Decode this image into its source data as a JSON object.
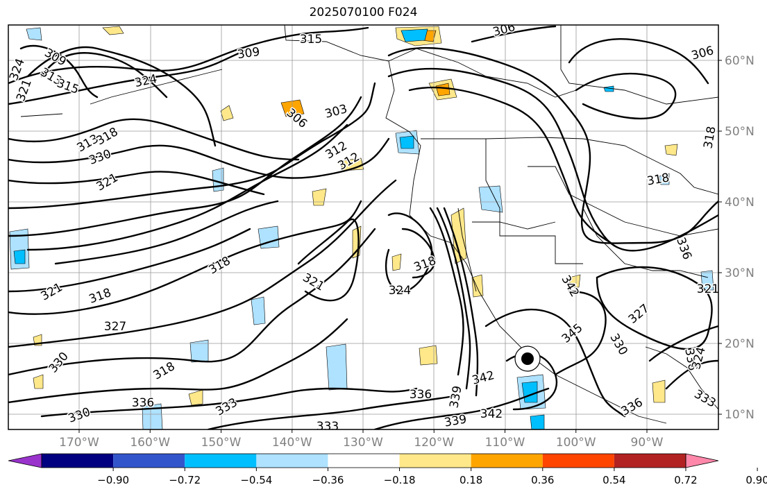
{
  "title": "2025070100 F024",
  "map": {
    "lat_labels": [
      "60°N",
      "50°N",
      "40°N",
      "30°N",
      "20°N",
      "10°N"
    ],
    "lon_labels": [
      "170°W",
      "160°W",
      "150°W",
      "140°W",
      "130°W",
      "120°W",
      "110°W",
      "100°W",
      "90°W"
    ],
    "contour_labels": [
      {
        "text": "315"
      },
      {
        "text": "309"
      },
      {
        "text": "309"
      },
      {
        "text": "306"
      },
      {
        "text": "306"
      },
      {
        "text": "324"
      },
      {
        "text": "321"
      },
      {
        "text": "313"
      },
      {
        "text": "315"
      },
      {
        "text": "324"
      },
      {
        "text": "306"
      },
      {
        "text": "303"
      },
      {
        "text": "313"
      },
      {
        "text": "318"
      },
      {
        "text": "330"
      },
      {
        "text": "321"
      },
      {
        "text": "312"
      },
      {
        "text": "312"
      },
      {
        "text": "318"
      },
      {
        "text": "318"
      },
      {
        "text": "321"
      },
      {
        "text": "324"
      },
      {
        "text": "321"
      },
      {
        "text": "318"
      },
      {
        "text": "327"
      },
      {
        "text": "330"
      },
      {
        "text": "318"
      },
      {
        "text": "336"
      },
      {
        "text": "330"
      },
      {
        "text": "333"
      },
      {
        "text": "333"
      },
      {
        "text": "336"
      },
      {
        "text": "339"
      },
      {
        "text": "339"
      },
      {
        "text": "342"
      },
      {
        "text": "342"
      },
      {
        "text": "345"
      },
      {
        "text": "342"
      },
      {
        "text": "327"
      },
      {
        "text": "330"
      },
      {
        "text": "336"
      },
      {
        "text": "336"
      },
      {
        "text": "318"
      },
      {
        "text": "318"
      },
      {
        "text": "336"
      },
      {
        "text": "324"
      },
      {
        "text": "333"
      },
      {
        "text": "321"
      }
    ]
  },
  "colorbar": {
    "ticks": [
      "−0.90",
      "−0.72",
      "−0.54",
      "−0.36",
      "−0.18",
      "0.18",
      "0.36",
      "0.54",
      "0.72",
      "0.90"
    ],
    "colors": [
      "#9933cc",
      "#000080",
      "#3355cc",
      "#00bfff",
      "#aee2ff",
      "#ffffff",
      "#ffe88a",
      "#ffa500",
      "#ff4500",
      "#b22222",
      "#ff88aa"
    ]
  }
}
